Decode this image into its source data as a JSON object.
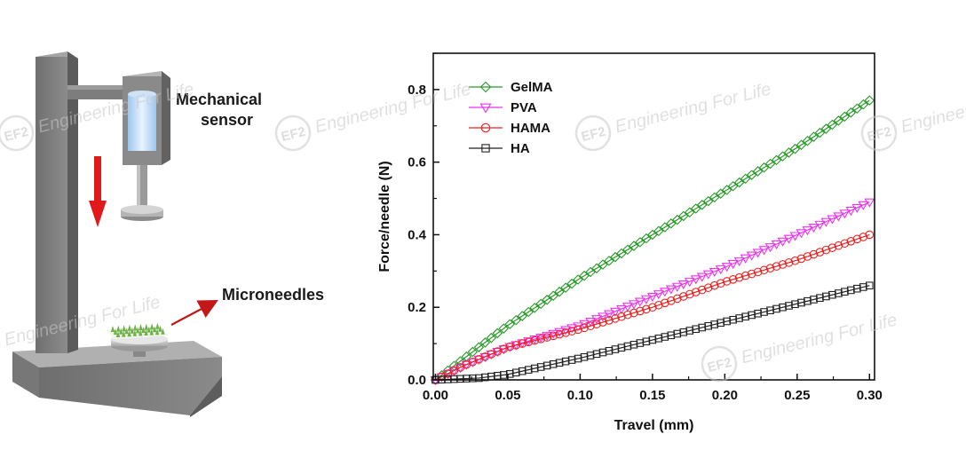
{
  "diagram": {
    "sensor_label_line1": "Mechanical",
    "sensor_label_line2": "sensor",
    "needles_label": "Microneedles",
    "arrow_color": "#e01a1a"
  },
  "watermark": {
    "text": "Engineering For Life",
    "logo_text": "EF2"
  },
  "chart_data": {
    "type": "scatter",
    "title": "",
    "xlabel": "Travel (mm)",
    "ylabel": "Force/needle (N)",
    "xlim": [
      0,
      0.3
    ],
    "ylim": [
      0,
      0.9
    ],
    "xticks": [
      "0.00",
      "0.05",
      "0.10",
      "0.15",
      "0.20",
      "0.25",
      "0.30"
    ],
    "yticks": [
      "0.0",
      "0.2",
      "0.4",
      "0.6",
      "0.8"
    ],
    "grid": false,
    "legend_position": "top-left",
    "series": [
      {
        "name": "GelMA",
        "marker": "diamond",
        "color": "#2a9a2a",
        "x": [
          0,
          0.02,
          0.05,
          0.1,
          0.15,
          0.2,
          0.25,
          0.3
        ],
        "y": [
          0,
          0.06,
          0.15,
          0.28,
          0.4,
          0.52,
          0.64,
          0.77
        ]
      },
      {
        "name": "PVA",
        "marker": "triangle-down",
        "color": "#ee33ee",
        "x": [
          0,
          0.02,
          0.05,
          0.1,
          0.15,
          0.2,
          0.25,
          0.3
        ],
        "y": [
          0,
          0.04,
          0.09,
          0.15,
          0.23,
          0.31,
          0.4,
          0.49
        ]
      },
      {
        "name": "HAMA",
        "marker": "circle",
        "color": "#ee2222",
        "x": [
          0,
          0.02,
          0.05,
          0.1,
          0.15,
          0.2,
          0.25,
          0.3
        ],
        "y": [
          0,
          0.04,
          0.09,
          0.14,
          0.2,
          0.27,
          0.33,
          0.4
        ]
      },
      {
        "name": "HA",
        "marker": "square",
        "color": "#222222",
        "x": [
          0,
          0.03,
          0.05,
          0.1,
          0.15,
          0.2,
          0.25,
          0.3
        ],
        "y": [
          0,
          0.005,
          0.015,
          0.06,
          0.11,
          0.16,
          0.21,
          0.26
        ]
      }
    ]
  }
}
